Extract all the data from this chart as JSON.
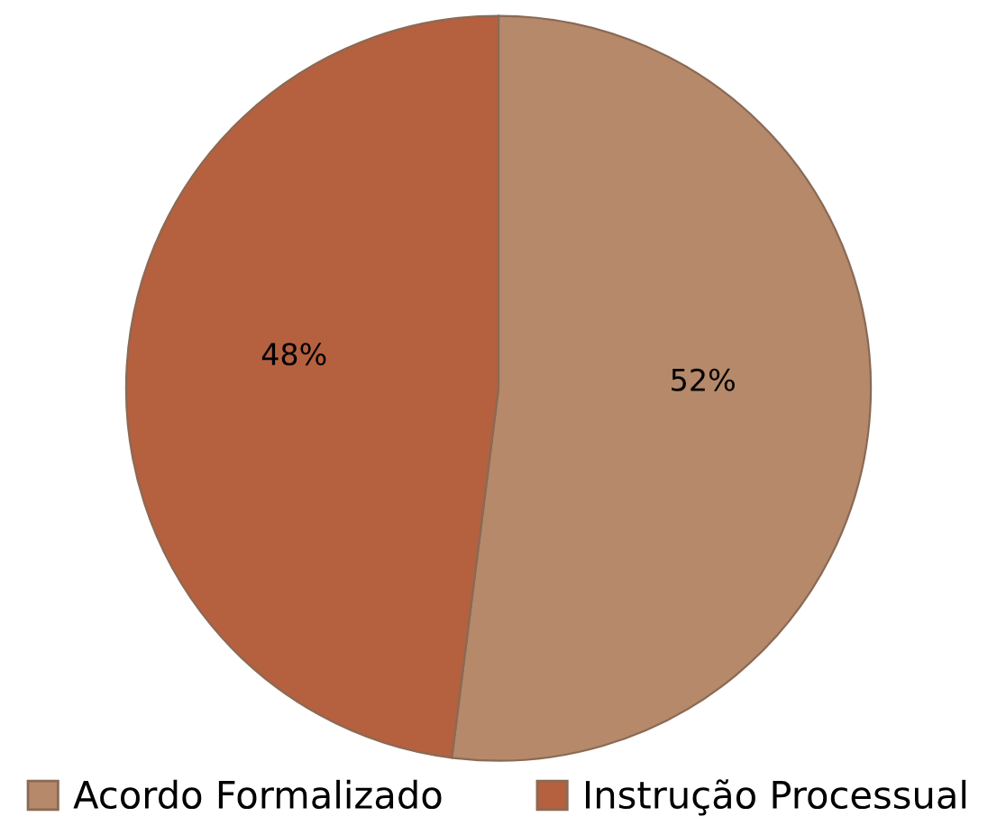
{
  "chart_data": {
    "type": "pie",
    "categories": [
      "Acordo Formalizado",
      "Instrução Processual"
    ],
    "values": [
      52,
      48
    ],
    "colors": [
      "#b5896a",
      "#b5603f"
    ],
    "value_labels": [
      "52%",
      "48%"
    ],
    "legend": "bottom"
  }
}
